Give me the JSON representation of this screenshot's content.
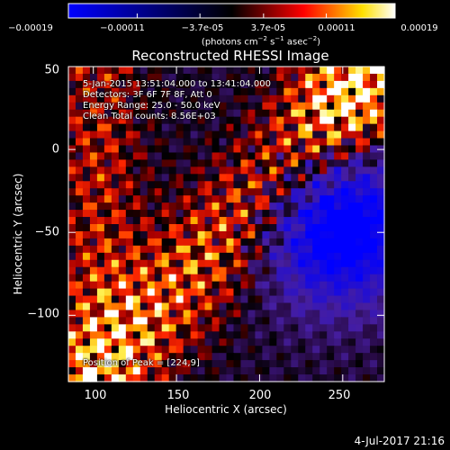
{
  "chart_data": {
    "type": "heatmap",
    "title": "Reconstructed RHESSI Image",
    "xlabel": "Heliocentric X (arcsec)",
    "ylabel": "Heliocentric Y (arcsec)",
    "xlim": [
      85,
      275
    ],
    "ylim": [
      -140,
      50
    ],
    "x_ticks": [
      100,
      150,
      200,
      250
    ],
    "y_ticks": [
      50,
      0,
      -50,
      -100
    ],
    "x_tick_labels": [
      "100",
      "150",
      "200",
      "250"
    ],
    "y_tick_labels": [
      "50",
      "0",
      "−50",
      "−100"
    ],
    "colorbar": {
      "tick_labels": [
        "−0.00019",
        "−0.00011",
        "−3.7e-05",
        "3.7e-05",
        "0.00011",
        "0.00019"
      ],
      "ticks": [
        -0.00019,
        -0.00011,
        -3.7e-05,
        3.7e-05,
        0.00011,
        0.00019
      ],
      "range": [
        -0.00019,
        0.00019
      ],
      "unit_text": "(photons cm",
      "unit_exp1": "−2",
      "unit_mid1": " s",
      "unit_exp2": "−1",
      "unit_mid2": " asec",
      "unit_exp3": "−2",
      "unit_end": ")"
    },
    "annotations": [
      "5-Jan-2015 13:51:04.000 to 13:41:04.000",
      "Detectors: 3F 6F 7F 8F, Att 0",
      "Energy Range: 25.0 - 50.0 keV",
      "Clean    Total counts: 8.56E+03",
      "Position of Peak = [224,9]"
    ],
    "peak_position": [
      224,
      9
    ],
    "total_counts": 8560,
    "energy_range_kev": [
      25.0,
      50.0
    ],
    "grid": false
  },
  "footer": {
    "date": "4-Jul-2017 21:16"
  }
}
